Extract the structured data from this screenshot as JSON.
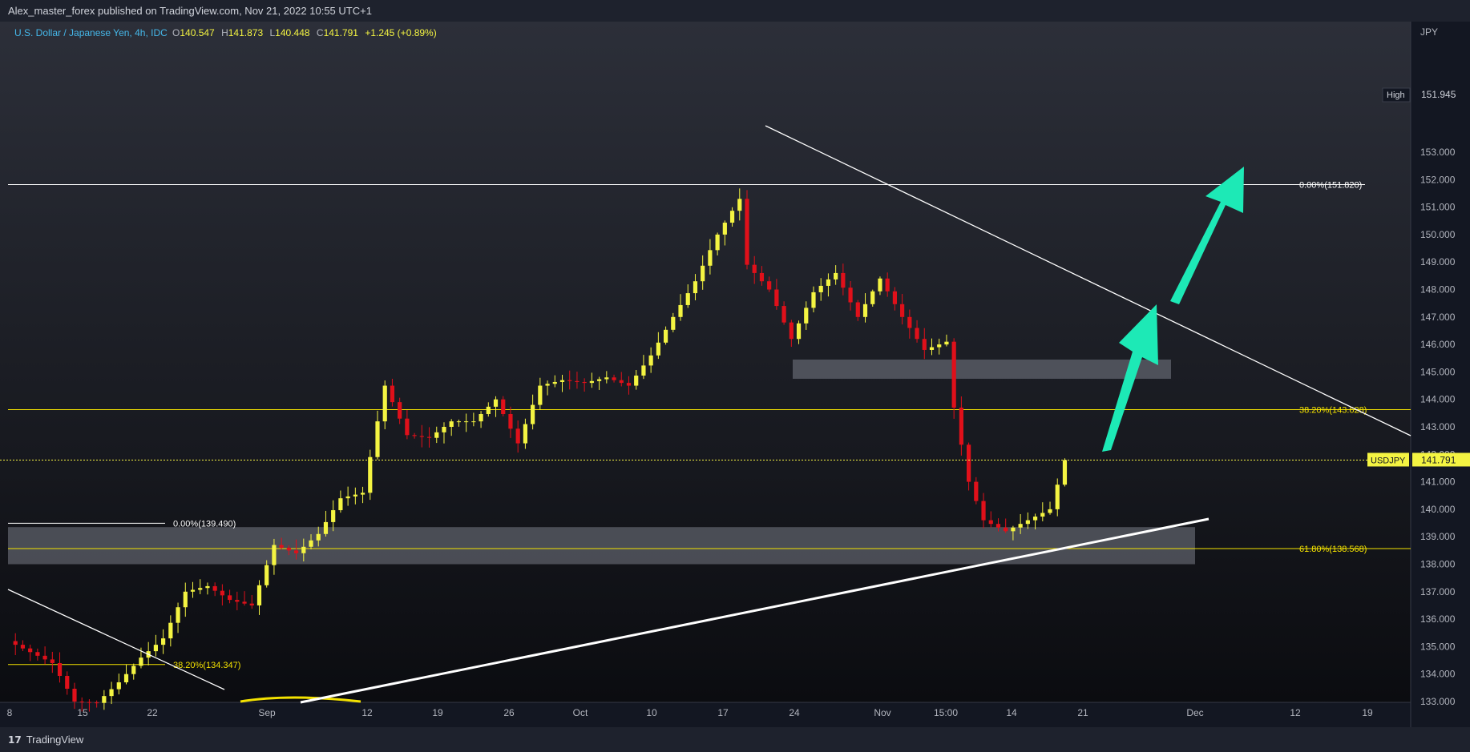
{
  "header": {
    "publisher": "Alex_master_forex published on TradingView.com, Nov 21, 2022 10:55 UTC+1"
  },
  "legend": {
    "symbol": "U.S. Dollar / Japanese Yen, 4h, IDC",
    "o_label": "O",
    "o_value": "140.547",
    "h_label": "H",
    "h_value": "141.873",
    "l_label": "L",
    "l_value": "140.448",
    "c_label": "C",
    "c_value": "141.791",
    "change": "+1.245 (+0.89%)"
  },
  "colors": {
    "up": "#f4f442",
    "down": "#e0101a",
    "fib": "#f4e200",
    "arrow": "#1de9b6",
    "zone": "#787b86",
    "background_top": "#2b2e38",
    "background_bottom": "#0b0c10"
  },
  "footer": {
    "brand": "TradingView",
    "logo_icon": "tradingview-logo-icon"
  },
  "chart_data": {
    "type": "candlestick",
    "currency": "JPY",
    "ylim": [
      132.9,
      153.7
    ],
    "y_ticks": [
      "133.000",
      "134.000",
      "135.000",
      "136.000",
      "137.000",
      "138.000",
      "139.000",
      "140.000",
      "141.000",
      "142.000",
      "143.000",
      "144.000",
      "145.000",
      "146.000",
      "147.000",
      "148.000",
      "149.000",
      "150.000",
      "151.000",
      "152.000",
      "153.000"
    ],
    "x_ticks": [
      "8",
      "15",
      "22",
      "Sep",
      "12",
      "19",
      "26",
      "Oct",
      "10",
      "17",
      "24",
      "Nov",
      "15:00",
      "14",
      "21",
      "Dec",
      "12",
      "19"
    ],
    "high_label": {
      "text": "High",
      "value": "151.945"
    },
    "last_price": {
      "symbol": "USDJPY",
      "value": "141.791",
      "price": 141.791
    },
    "fib_levels": [
      {
        "label": "0.00%(151.820)",
        "price": 151.82
      },
      {
        "label": "38.20%(143.628)",
        "price": 143.628
      },
      {
        "label": "61.80%(138.568)",
        "price": 138.568
      },
      {
        "label": "0.00%(139.490)",
        "price": 139.49
      },
      {
        "label": "38.20%(134.347)",
        "price": 134.347
      }
    ],
    "zones": [
      {
        "name": "resistance-zone",
        "y_top": 145.45,
        "y_bottom": 144.75
      },
      {
        "name": "support-zone",
        "y_top": 139.35,
        "y_bottom": 138.0
      }
    ],
    "key_points": [
      [
        0,
        135.2
      ],
      [
        3,
        134.8
      ],
      [
        6,
        134.4
      ],
      [
        9,
        133.0
      ],
      [
        12,
        132.95
      ],
      [
        15,
        133.7
      ],
      [
        18,
        134.6
      ],
      [
        21,
        135.3
      ],
      [
        24,
        137.0
      ],
      [
        27,
        137.2
      ],
      [
        30,
        136.7
      ],
      [
        33,
        136.5
      ],
      [
        36,
        138.7
      ],
      [
        39,
        138.4
      ],
      [
        42,
        139.1
      ],
      [
        45,
        140.4
      ],
      [
        48,
        140.6
      ],
      [
        51,
        144.5
      ],
      [
        54,
        142.7
      ],
      [
        57,
        142.6
      ],
      [
        60,
        143.2
      ],
      [
        63,
        143.2
      ],
      [
        66,
        144.0
      ],
      [
        69,
        142.4
      ],
      [
        72,
        144.5
      ],
      [
        75,
        144.7
      ],
      [
        78,
        144.6
      ],
      [
        81,
        144.8
      ],
      [
        84,
        144.5
      ],
      [
        87,
        145.6
      ],
      [
        90,
        147.0
      ],
      [
        93,
        148.3
      ],
      [
        96,
        150.0
      ],
      [
        99,
        151.3
      ],
      [
        100,
        148.9
      ],
      [
        103,
        148.0
      ],
      [
        106,
        146.2
      ],
      [
        109,
        147.9
      ],
      [
        112,
        148.6
      ],
      [
        115,
        147.0
      ],
      [
        118,
        148.4
      ],
      [
        121,
        147.0
      ],
      [
        124,
        145.8
      ],
      [
        127,
        146.1
      ],
      [
        128,
        143.7
      ],
      [
        130,
        141.0
      ],
      [
        132,
        139.6
      ],
      [
        135,
        139.2
      ],
      [
        138,
        139.6
      ],
      [
        141,
        140.0
      ],
      [
        143,
        141.79
      ]
    ]
  }
}
